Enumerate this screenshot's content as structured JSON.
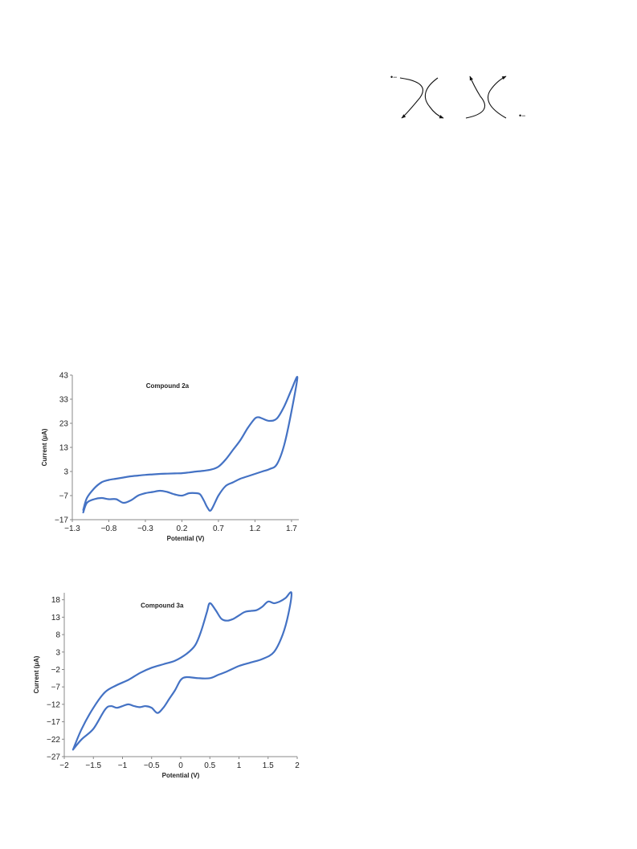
{
  "scheme": {
    "left_label": "•−",
    "right_label": "•−"
  },
  "chart_data": [
    {
      "type": "line",
      "title": "Compound 2a",
      "xlabel": "Potential (V)",
      "ylabel": "Current (µA)",
      "xlim": [
        -1.3,
        1.8
      ],
      "ylim": [
        -17,
        43
      ],
      "xticks": [
        "−1.3",
        "−0.8",
        "−0.3",
        "0.2",
        "0.7",
        "1.2",
        "1.7"
      ],
      "yticks": [
        "43",
        "33",
        "23",
        "13",
        "3",
        "−7",
        "−17"
      ],
      "xtick_values": [
        -1.3,
        -0.8,
        -0.3,
        0.2,
        0.7,
        1.2,
        1.7
      ],
      "ytick_values": [
        43,
        33,
        23,
        13,
        3,
        -7,
        -17
      ],
      "grid": false,
      "color": "#4472c4",
      "series": [
        {
          "x": [
            -1.15,
            -1.1,
            -1.0,
            -0.9,
            -0.8,
            -0.7,
            -0.6,
            -0.5,
            -0.4,
            -0.3,
            -0.2,
            -0.1,
            0.0,
            0.1,
            0.2,
            0.3,
            0.4,
            0.5,
            0.6,
            0.7,
            0.8,
            0.9,
            1.0,
            1.1,
            1.2,
            1.25,
            1.3,
            1.4,
            1.5,
            1.6,
            1.7,
            1.78,
            1.7,
            1.6,
            1.5,
            1.4,
            1.3,
            1.2,
            1.1,
            1.0,
            0.9,
            0.8,
            0.7,
            0.6,
            0.55,
            0.5,
            0.45,
            0.4,
            0.3,
            0.2,
            0.1,
            0.0,
            -0.1,
            -0.2,
            -0.3,
            -0.4,
            -0.5,
            -0.6,
            -0.7,
            -0.8,
            -0.9,
            -1.0,
            -1.1,
            -1.15
          ],
          "y": [
            -13,
            -8,
            -4,
            -1.5,
            -0.5,
            0,
            0.5,
            1,
            1.3,
            1.6,
            1.8,
            2,
            2.1,
            2.2,
            2.3,
            2.6,
            3,
            3.3,
            3.8,
            5,
            8,
            12,
            16,
            21,
            25,
            25.5,
            25,
            24,
            25,
            30,
            37,
            42,
            28,
            14,
            6,
            4,
            3,
            2,
            1,
            0,
            -1.5,
            -3,
            -7,
            -13,
            -12,
            -9,
            -6.5,
            -6,
            -6,
            -7,
            -6.5,
            -5.5,
            -5,
            -5.5,
            -6,
            -7,
            -9,
            -10,
            -8.5,
            -8.5,
            -8,
            -8.5,
            -10,
            -14
          ]
        }
      ]
    },
    {
      "type": "line",
      "title": "Compound 3a",
      "xlabel": "Potential (V)",
      "ylabel": "Current (µA)",
      "xlim": [
        -2,
        2
      ],
      "ylim": [
        -27,
        20
      ],
      "xticks": [
        "−2",
        "−1.5",
        "−1",
        "−0.5",
        "0",
        "0.5",
        "1",
        "1.5",
        "2"
      ],
      "yticks": [
        "18",
        "13",
        "8",
        "3",
        "−2",
        "−7",
        "−12",
        "−17",
        "−22",
        "−27"
      ],
      "xtick_values": [
        -2,
        -1.5,
        -1,
        -0.5,
        0,
        0.5,
        1,
        1.5,
        2
      ],
      "ytick_values": [
        18,
        13,
        8,
        3,
        -2,
        -7,
        -12,
        -17,
        -22,
        -27
      ],
      "grid": false,
      "color": "#4472c4",
      "series": [
        {
          "x": [
            -1.85,
            -1.7,
            -1.5,
            -1.3,
            -1.1,
            -0.9,
            -0.7,
            -0.5,
            -0.3,
            -0.1,
            0.1,
            0.25,
            0.35,
            0.45,
            0.5,
            0.6,
            0.7,
            0.8,
            0.9,
            1.0,
            1.1,
            1.2,
            1.3,
            1.4,
            1.5,
            1.6,
            1.7,
            1.8,
            1.9,
            1.85,
            1.75,
            1.6,
            1.4,
            1.2,
            1.0,
            0.8,
            0.65,
            0.5,
            0.3,
            0.1,
            0.0,
            -0.1,
            -0.2,
            -0.3,
            -0.4,
            -0.5,
            -0.6,
            -0.7,
            -0.8,
            -0.9,
            -1.0,
            -1.1,
            -1.2,
            -1.3,
            -1.5,
            -1.7,
            -1.85
          ],
          "y": [
            -25,
            -19,
            -13,
            -8.5,
            -6.5,
            -5,
            -3,
            -1.5,
            -0.5,
            0.5,
            2.5,
            5,
            9,
            14.5,
            17,
            15,
            12.5,
            12,
            12.5,
            13.5,
            14.5,
            14.8,
            15,
            16,
            17.5,
            17,
            17.5,
            18.5,
            20,
            14,
            8,
            3,
            1,
            0,
            -1,
            -2.5,
            -3.5,
            -4.5,
            -4.5,
            -4.2,
            -5,
            -8,
            -10.5,
            -13,
            -14.5,
            -13,
            -12.5,
            -12.8,
            -12.5,
            -12,
            -12.5,
            -13,
            -12.5,
            -13.5,
            -19,
            -22,
            -25
          ]
        }
      ]
    }
  ]
}
